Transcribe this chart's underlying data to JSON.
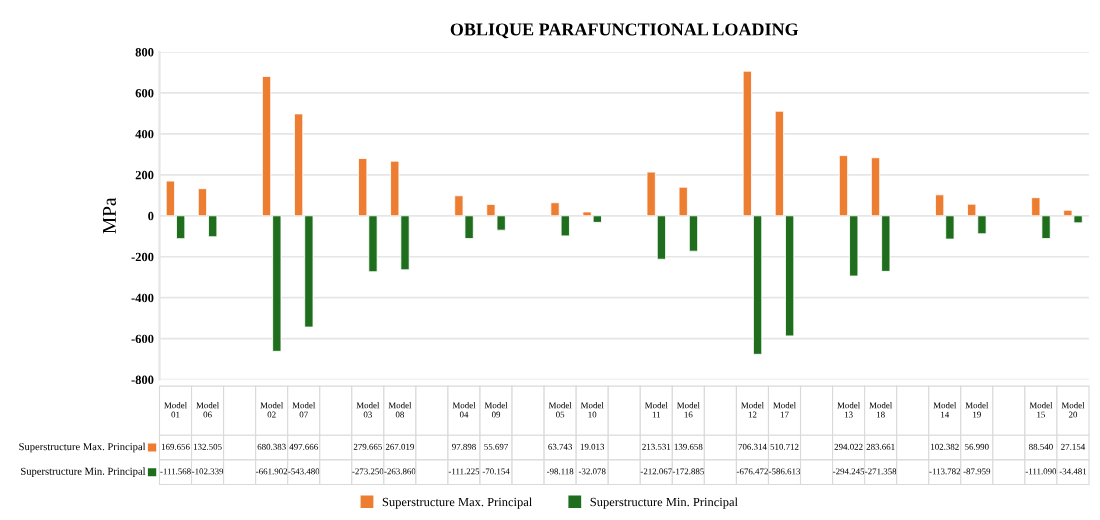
{
  "chart_data": {
    "type": "bar",
    "title": "OBLIQUE PARAFUNCTIONAL LOADING",
    "ylabel": "MPa",
    "categories": [
      "Model\n01",
      "Model\n06",
      null,
      "Model\n02",
      "Model\n07",
      null,
      "Model\n03",
      "Model\n08",
      null,
      "Model\n04",
      "Model\n09",
      null,
      "Model\n05",
      "Model\n10",
      null,
      "Model\n11",
      "Model\n16",
      null,
      "Model\n12",
      "Model\n17",
      null,
      "Model\n13",
      "Model\n18",
      null,
      "Model\n14",
      "Model\n19",
      null,
      "Model\n15",
      "Model\n20"
    ],
    "series": [
      {
        "name": "Superstructure Max. Principal",
        "color": "#ed7d31",
        "values": [
          169.656,
          132.505,
          null,
          680.383,
          497.666,
          null,
          279.665,
          267.019,
          null,
          97.898,
          55.697,
          null,
          63.743,
          19.013,
          null,
          213.531,
          139.658,
          null,
          706.314,
          510.712,
          null,
          294.022,
          283.661,
          null,
          102.382,
          56.99,
          null,
          88.54,
          27.154
        ],
        "value_labels": [
          "169.656",
          "132.505",
          null,
          "680.383",
          "497.666",
          null,
          "279.665",
          "267.019",
          null,
          "97.898",
          "55.697",
          null,
          "63.743",
          "19.013",
          null,
          "213.531",
          "139.658",
          null,
          "706.314",
          "510.712",
          null,
          "294.022",
          "283.661",
          null,
          "102.382",
          "56.990",
          null,
          "88.540",
          "27.154"
        ]
      },
      {
        "name": "Superstructure Min. Principal",
        "color": "#1e6e1e",
        "values": [
          -111.568,
          -102.339,
          null,
          -661.902,
          -543.48,
          null,
          -273.25,
          -263.86,
          null,
          -111.225,
          -70.154,
          null,
          -98.118,
          -32.078,
          null,
          -212.067,
          -172.885,
          null,
          -676.472,
          -586.613,
          null,
          -294.245,
          -271.358,
          null,
          -113.782,
          -87.959,
          null,
          -111.09,
          -34.481
        ],
        "value_labels": [
          "-111.568",
          "-102.339",
          null,
          "-661.902",
          "-543.480",
          null,
          "-273.250",
          "-263.860",
          null,
          "-111.225",
          "-70.154",
          null,
          "-98.118",
          "-32.078",
          null,
          "-212.067",
          "-172.885",
          null,
          "-676.472",
          "-586.613",
          null,
          "-294.245",
          "-271.358",
          null,
          "-113.782",
          "-87.959",
          null,
          "-111.090",
          "-34.481"
        ]
      }
    ],
    "ylim": [
      -800,
      800
    ],
    "yticks": [
      -800,
      -600,
      -400,
      -200,
      0,
      200,
      400,
      600,
      800
    ],
    "grid": "y",
    "legend": "bottom"
  }
}
